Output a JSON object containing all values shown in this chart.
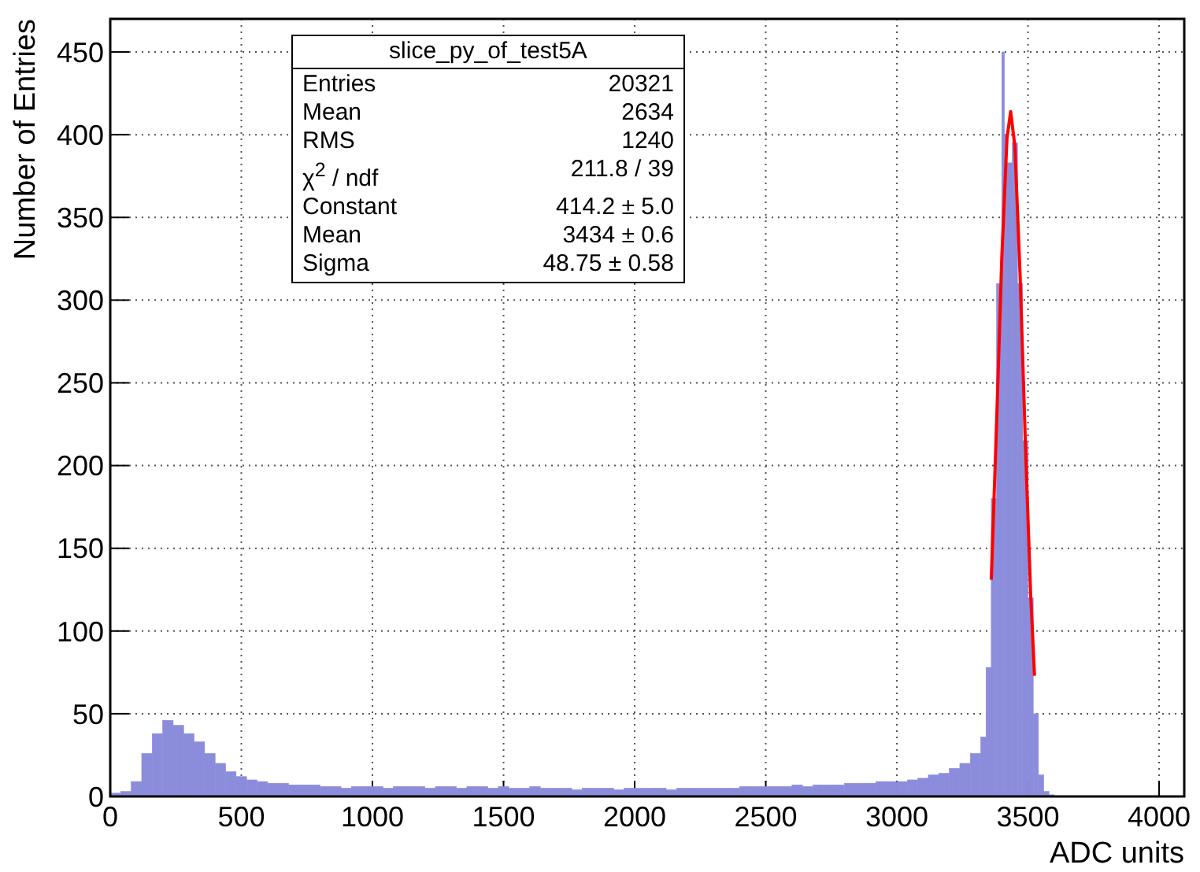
{
  "chart_data": {
    "type": "histogram",
    "xlabel": "ADC units",
    "ylabel": "Number of Entries",
    "annotations": [
      "slice_py_of_test5A",
      "Entries\t20321",
      "Mean\t2634",
      "RMS\t1240",
      "χ$^{2}$ / ndf\t211.8 / 39",
      "Constant\t414.2 ± 5.0",
      "Mean\t3434 ± 0.6",
      "Sigma\t48.75 ± 0.58"
    ],
    "xlim": [
      0,
      4096
    ],
    "ylim": [
      0,
      470
    ],
    "xticks": [
      0,
      500,
      1000,
      1500,
      2000,
      2500,
      3000,
      3500,
      4000
    ],
    "yticks": [
      0,
      50,
      100,
      150,
      200,
      250,
      300,
      350,
      400,
      450
    ],
    "grid": true,
    "color": "#8c8cdc",
    "bins": [
      0,
      40,
      80,
      120,
      160,
      200,
      240,
      280,
      320,
      360,
      400,
      440,
      480,
      520,
      560,
      600,
      640,
      680,
      720,
      760,
      800,
      840,
      880,
      920,
      960,
      1000,
      1040,
      1080,
      1120,
      1160,
      1200,
      1240,
      1280,
      1320,
      1360,
      1400,
      1440,
      1480,
      1520,
      1560,
      1600,
      1640,
      1680,
      1720,
      1760,
      1800,
      1840,
      1880,
      1920,
      1960,
      2000,
      2040,
      2080,
      2120,
      2160,
      2200,
      2240,
      2280,
      2320,
      2360,
      2400,
      2440,
      2480,
      2520,
      2560,
      2600,
      2640,
      2680,
      2720,
      2760,
      2800,
      2840,
      2880,
      2920,
      2960,
      3000,
      3040,
      3080,
      3120,
      3160,
      3200,
      3240,
      3280,
      3320,
      3340,
      3360,
      3380,
      3400,
      3410,
      3420,
      3440,
      3460,
      3480,
      3500,
      3520,
      3540,
      3560,
      3580,
      3600
    ],
    "values": [
      2,
      3,
      9,
      26,
      38,
      46,
      43,
      38,
      33,
      26,
      20,
      15,
      12,
      10,
      9,
      8,
      8,
      7,
      7,
      7,
      6,
      6,
      5,
      6,
      6,
      6,
      5,
      6,
      6,
      6,
      5,
      6,
      6,
      5,
      6,
      6,
      5,
      6,
      5,
      5,
      6,
      5,
      5,
      5,
      4,
      5,
      5,
      5,
      4,
      5,
      5,
      5,
      5,
      4,
      5,
      5,
      5,
      5,
      5,
      5,
      6,
      6,
      6,
      6,
      6,
      7,
      6,
      7,
      7,
      7,
      8,
      8,
      8,
      9,
      9,
      9,
      10,
      11,
      13,
      14,
      17,
      20,
      26,
      36,
      78,
      180,
      310,
      450,
      400,
      383,
      395,
      310,
      215,
      120,
      50,
      13,
      3,
      1
    ],
    "series": [
      {
        "type": "line",
        "color": "#ff0000",
        "x": [
          3360,
          3380,
          3400,
          3420,
          3434,
          3450,
          3470,
          3490,
          3510,
          3525
        ],
        "values": [
          131,
          224,
          325,
          398,
          414,
          393,
          315,
          214,
          123,
          73
        ]
      }
    ]
  }
}
